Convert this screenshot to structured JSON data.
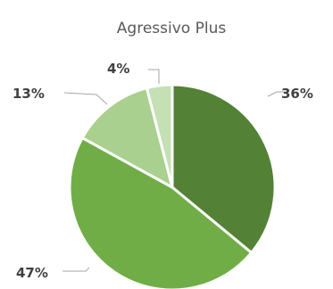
{
  "chart_data": {
    "type": "pie",
    "title": "Agressivo Plus",
    "categories": [
      "",
      "",
      "",
      ""
    ],
    "values": [
      36,
      47,
      13,
      4
    ],
    "data_labels": [
      "36%",
      "47%",
      "13%",
      "4%"
    ],
    "colors": [
      "#538135",
      "#70ad47",
      "#a9d08e",
      "#c5e0b4"
    ],
    "start_angle_deg": 0,
    "direction": "clockwise",
    "legend": "none"
  }
}
